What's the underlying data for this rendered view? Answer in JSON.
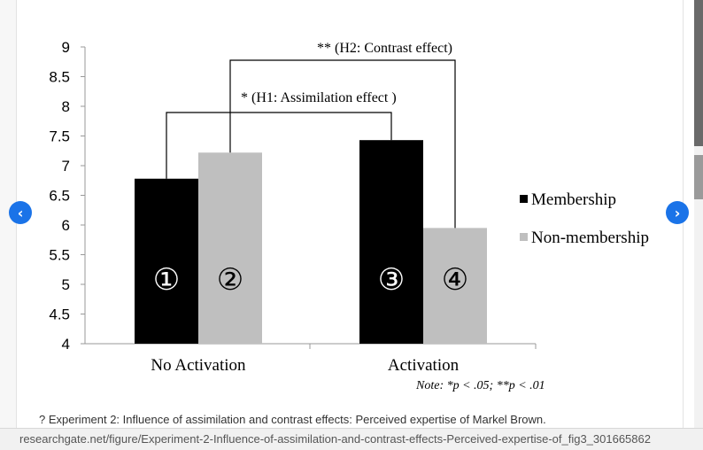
{
  "viewer": {
    "prev_icon": "chevron-left-icon",
    "next_icon": "chevron-right-icon",
    "prev_glyph": "‹",
    "next_glyph": "›",
    "caption": "? Experiment 2: Influence of assimilation and contrast effects: Perceived expertise of Markel Brown.",
    "url": "researchgate.net/figure/Experiment-2-Influence-of-assimilation-and-contrast-effects-Perceived-expertise-of_fig3_301665862"
  },
  "chart_data": {
    "type": "bar",
    "categories": [
      "No Activation",
      "Activation"
    ],
    "series": [
      {
        "name": "Membership",
        "values": [
          6.78,
          7.43
        ],
        "color": "#000000"
      },
      {
        "name": "Non-membership",
        "values": [
          7.22,
          5.95
        ],
        "color": "#bfbfbf"
      }
    ],
    "bar_labels": [
      "①",
      "②",
      "③",
      "④"
    ],
    "ylim": [
      4,
      9
    ],
    "yticks": [
      "4",
      "4.5",
      "5",
      "5.5",
      "6",
      "6.5",
      "7",
      "7.5",
      "8",
      "8.5",
      "9"
    ],
    "grid": false,
    "legend_position": "right",
    "annotations": {
      "h1": "* (H1: Assimilation  effect )",
      "h2": "** (H2: Contrast effect)",
      "note": "Note: *p < .05; **p < .01"
    }
  }
}
